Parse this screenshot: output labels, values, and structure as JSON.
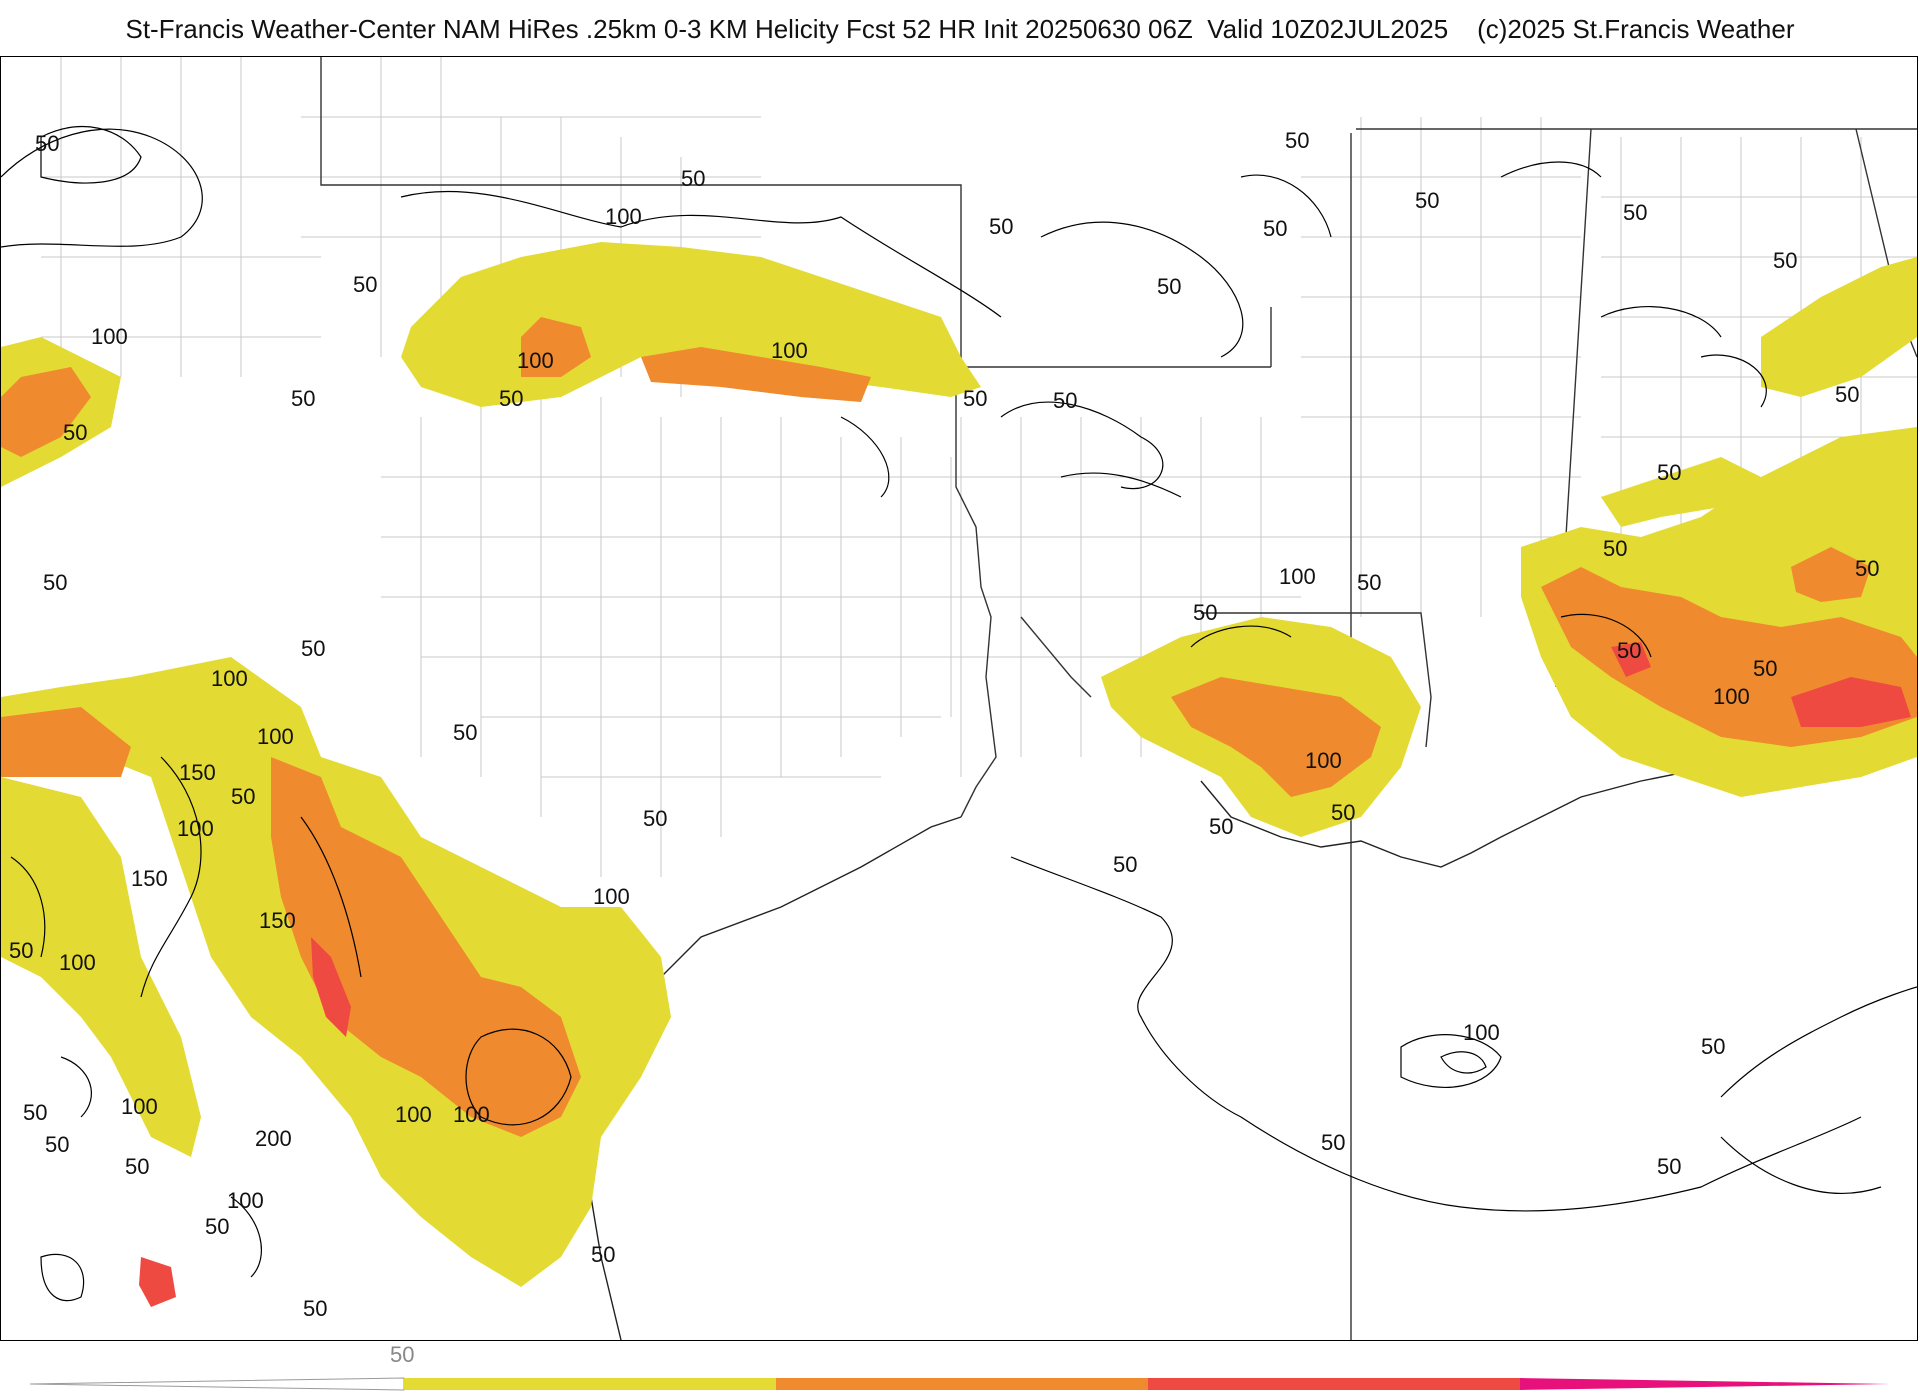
{
  "header": {
    "title": "St-Francis Weather-Center NAM HiRes .25km 0-3 KM Helicity Fcst 52 HR Init 20250630 06Z  Valid 10Z02JUL2025    (c)2025 St.Francis Weather"
  },
  "colors": {
    "band_50_100": "#e3db33",
    "band_100_150": "#ef8a2e",
    "band_150_200": "#ee4a41",
    "band_200_plus": "#e8117c",
    "contour_line": "#000000",
    "border_line": "#333333",
    "county_line": "#c8c8c8"
  },
  "contour_labels": [
    "50",
    "100",
    "150",
    "200"
  ],
  "colorbar": {
    "tick_label": "50",
    "bands": [
      "#e3db33",
      "#ef8a2e",
      "#ee4a41",
      "#e8117c"
    ]
  }
}
